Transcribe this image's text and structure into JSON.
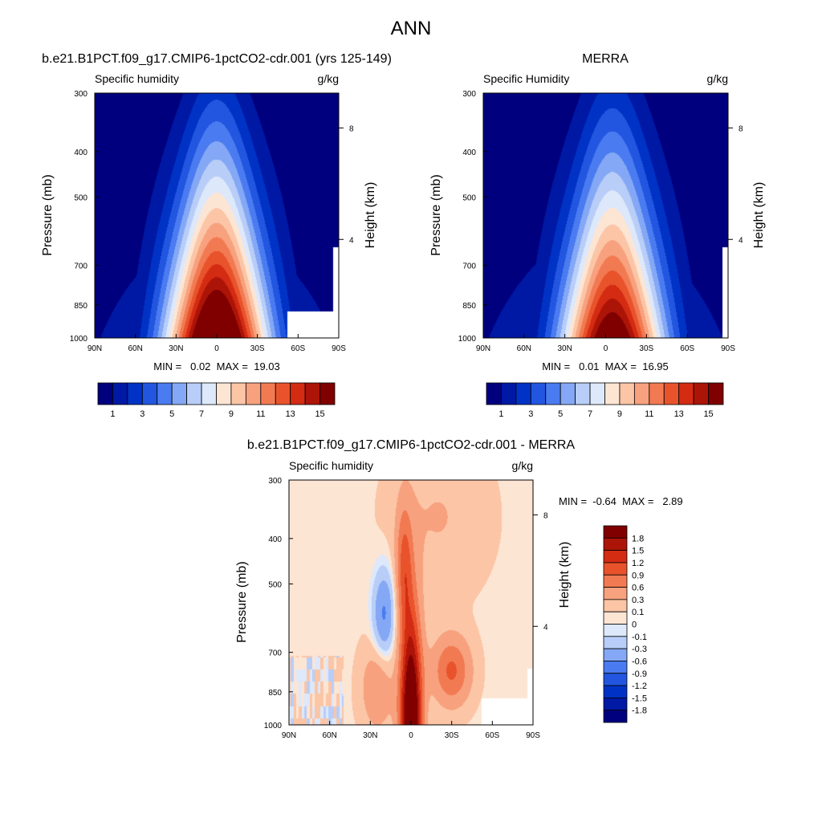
{
  "figure_title": "ANN",
  "colors": {
    "qlevels": [
      "#00007f",
      "#0019a4",
      "#0033c5",
      "#2256e0",
      "#4a7bf0",
      "#84a8f5",
      "#b8cdf7",
      "#dde8fb",
      "#fde5d4",
      "#fbc5a6",
      "#f7a17e",
      "#f27a52",
      "#e9532b",
      "#d42b13",
      "#ad1408",
      "#800000"
    ],
    "dlevels": [
      "#00007f",
      "#0019a4",
      "#0033c5",
      "#2256e0",
      "#4a7bf0",
      "#84a8f5",
      "#b8cdf7",
      "#dde8fb",
      "#fde5d4",
      "#fbc5a6",
      "#f7a17e",
      "#f27a52",
      "#e9532b",
      "#d42b13",
      "#ad1408",
      "#800000"
    ]
  },
  "chart_data": [
    {
      "type": "heatmap",
      "panel_title": "b.e21.B1PCT.f09_g17.CMIP6-1pctCO2-cdr.001 (yrs 125-149)",
      "left_label": "Specific humidity",
      "right_label": "g/kg",
      "xlabel": "",
      "ylabel": "Pressure (mb)",
      "y2label": "Height (km)",
      "xticks": [
        "90N",
        "60N",
        "30N",
        "0",
        "30S",
        "60S",
        "90S"
      ],
      "yticks": [
        "300",
        "400",
        "500",
        "700",
        "850",
        "1000"
      ],
      "y2ticks": [
        "8",
        "4"
      ],
      "stats": "MIN =   0.02  MAX =  19.03",
      "min": 0.02,
      "max": 19.03,
      "colorbar_labels": [
        "1",
        "3",
        "5",
        "7",
        "9",
        "11",
        "13",
        "15"
      ],
      "peak_lat": 0,
      "peak_value": 19.03
    },
    {
      "type": "heatmap",
      "panel_title": "MERRA",
      "left_label": "Specific Humidity",
      "right_label": "g/kg",
      "xlabel": "",
      "ylabel": "Pressure (mb)",
      "y2label": "Height (km)",
      "xticks": [
        "90N",
        "60N",
        "30N",
        "0",
        "30S",
        "60S",
        "90S"
      ],
      "yticks": [
        "300",
        "400",
        "500",
        "700",
        "850",
        "1000"
      ],
      "y2ticks": [
        "8",
        "4"
      ],
      "stats": "MIN =   0.01  MAX =  16.95",
      "min": 0.01,
      "max": 16.95,
      "colorbar_labels": [
        "1",
        "3",
        "5",
        "7",
        "9",
        "11",
        "13",
        "15"
      ],
      "peak_lat": -5,
      "peak_value": 16.95
    },
    {
      "type": "heatmap",
      "panel_title": "b.e21.B1PCT.f09_g17.CMIP6-1pctCO2-cdr.001 - MERRA",
      "left_label": "Specific humidity",
      "right_label": "g/kg",
      "xlabel": "",
      "ylabel": "Pressure (mb)",
      "y2label": "Height (km)",
      "xticks": [
        "90N",
        "60N",
        "30N",
        "0",
        "30S",
        "60S",
        "90S"
      ],
      "yticks": [
        "300",
        "400",
        "500",
        "700",
        "850",
        "1000"
      ],
      "y2ticks": [
        "8",
        "4"
      ],
      "stats": "MIN =  -0.64  MAX =   2.89",
      "min": -0.64,
      "max": 2.89,
      "colorbar_labels": [
        "1.8",
        "1.5",
        "1.2",
        "0.9",
        "0.6",
        "0.3",
        "0.1",
        "0",
        "-0.1",
        "-0.3",
        "-0.6",
        "-0.9",
        "-1.2",
        "-1.5",
        "-1.8"
      ]
    }
  ]
}
